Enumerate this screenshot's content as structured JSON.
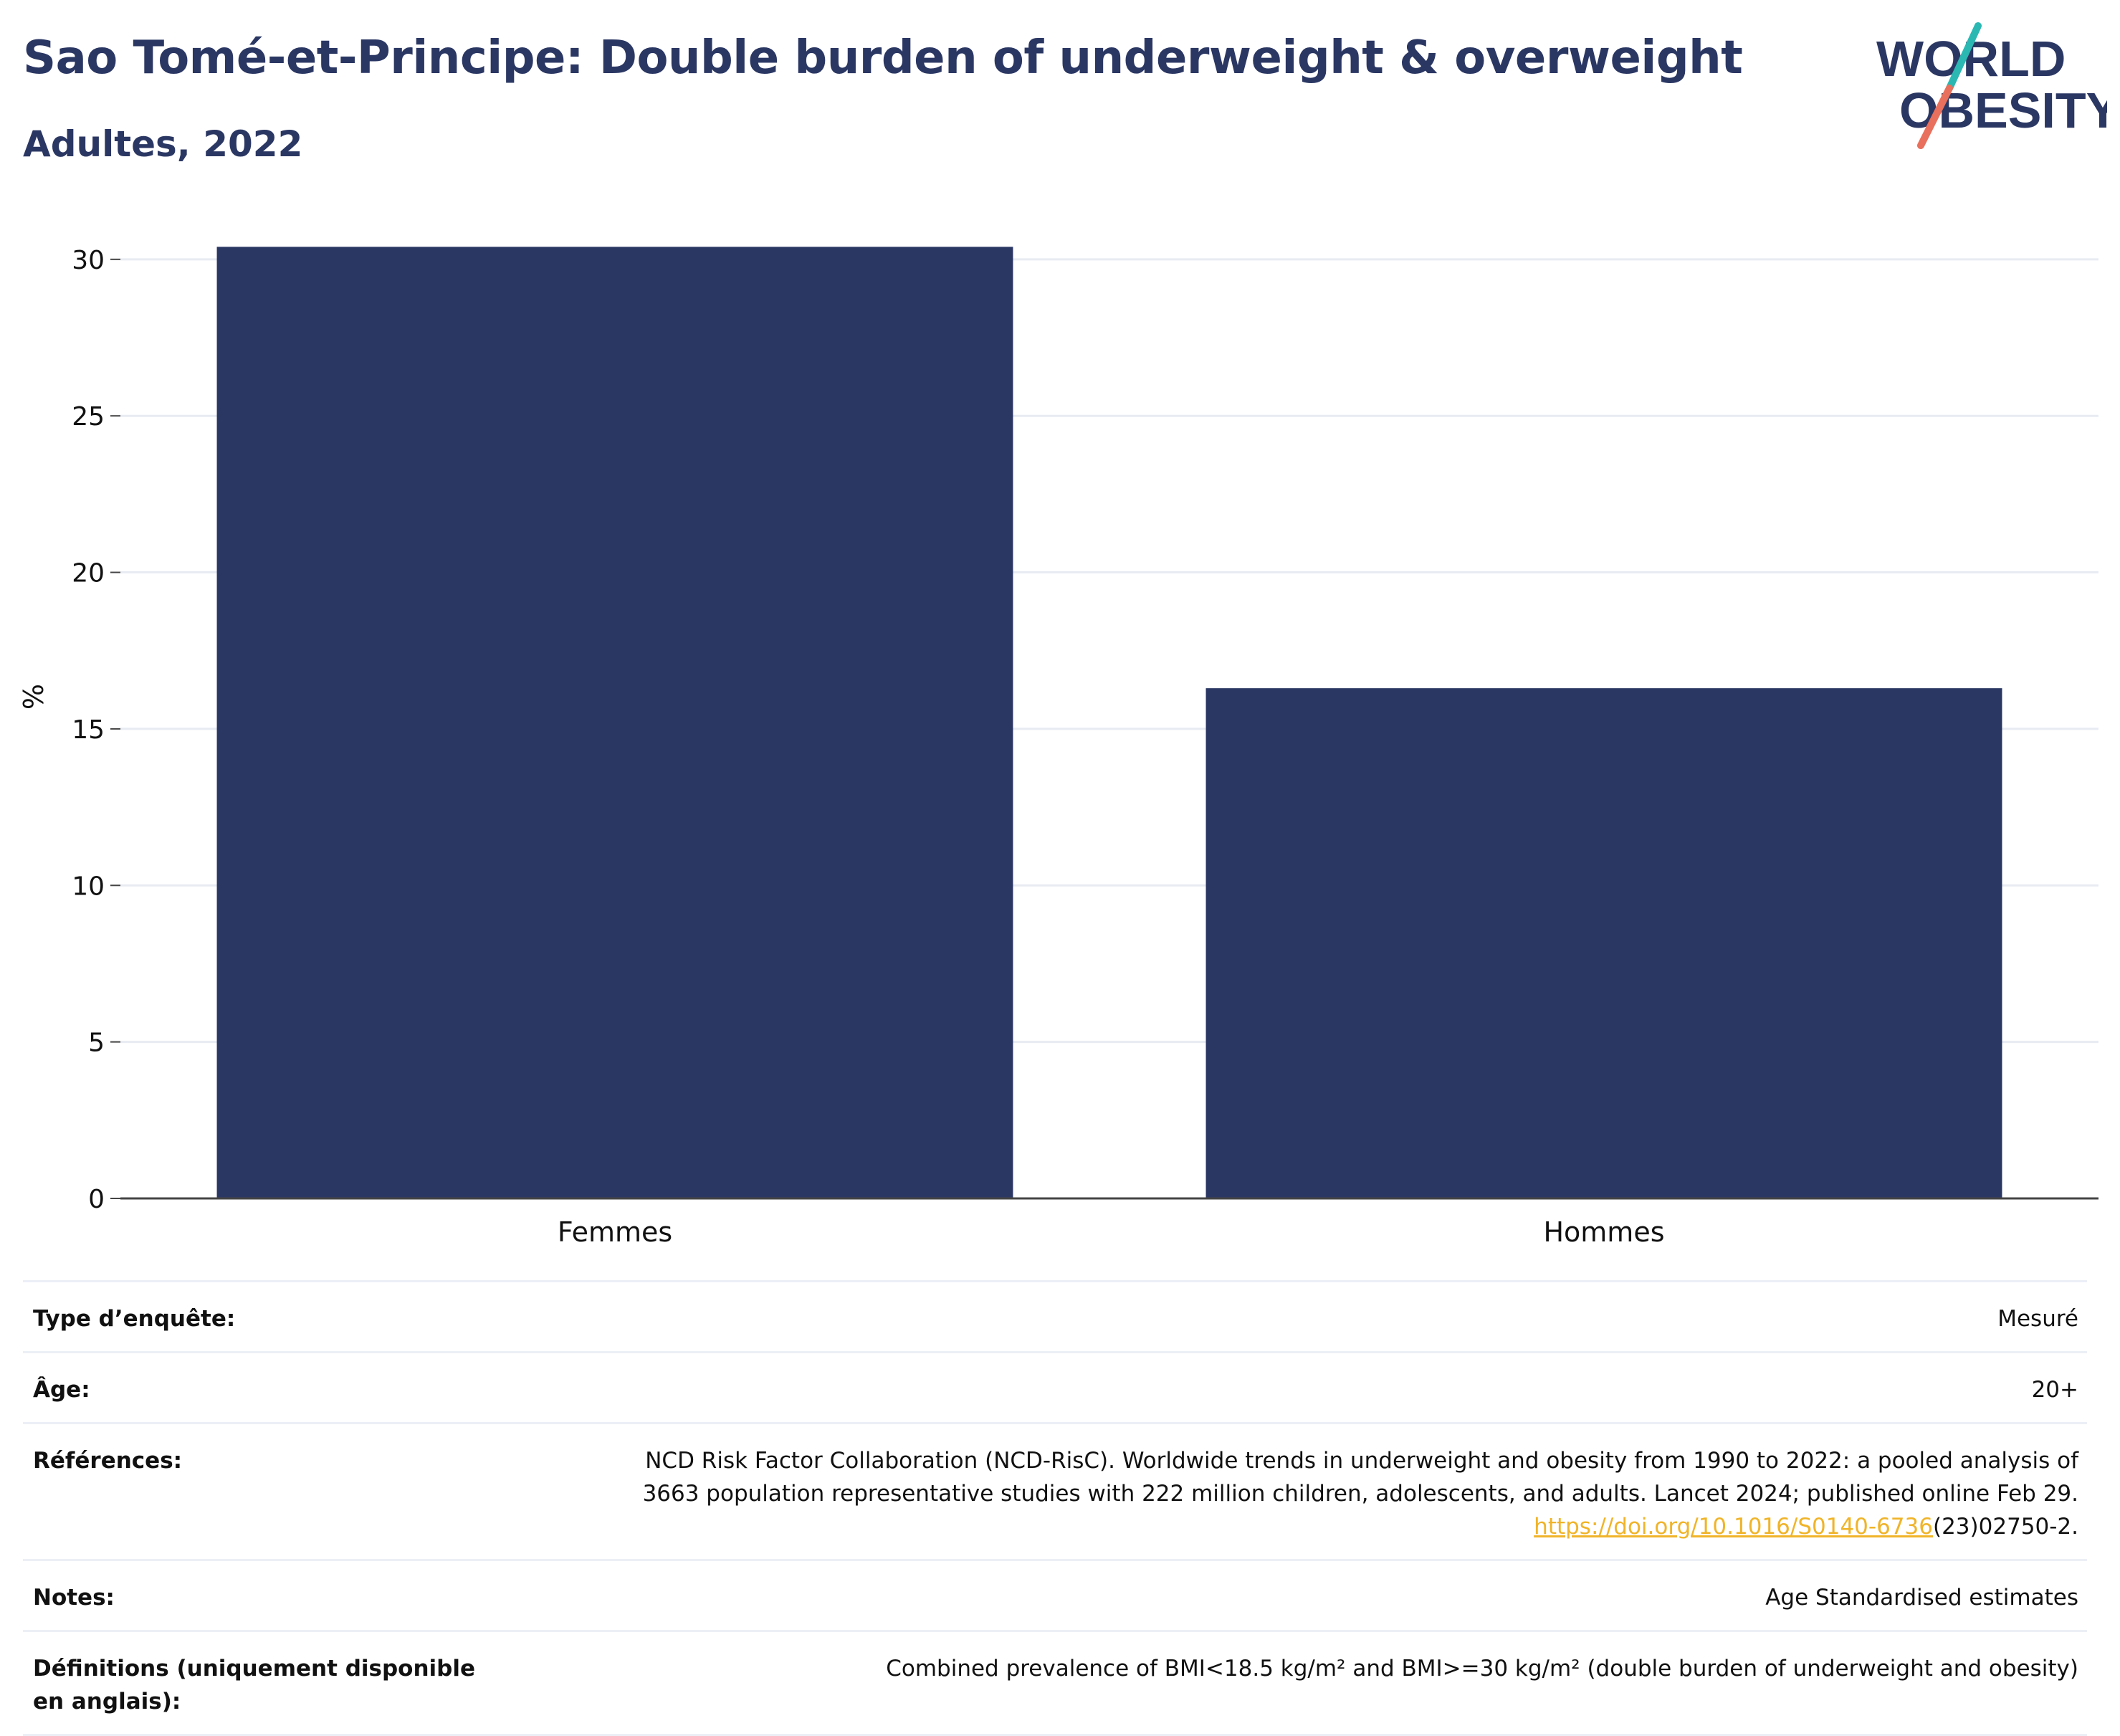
{
  "header": {
    "title": "Sao Tomé-et-Principe: Double burden of underweight & overweight",
    "subtitle": "Adultes, 2022"
  },
  "logo": {
    "line1": "WORLD",
    "line2": "OBESITY",
    "colors": {
      "text": "#2b3763",
      "slash_top": "#2bb8b3",
      "slash_bottom": "#e8705c"
    }
  },
  "chart_data": {
    "type": "bar",
    "categories": [
      "Femmes",
      "Hommes"
    ],
    "values": [
      30.4,
      16.3
    ],
    "ylabel": "%",
    "xlabel": "",
    "ylim": [
      0,
      30.5
    ],
    "yticks": [
      0,
      5,
      10,
      15,
      20,
      25,
      30
    ],
    "grid": true,
    "bar_color": "#2b3763"
  },
  "metadata": {
    "survey_type": {
      "label": "Type d’enquête:",
      "value": "Mesuré"
    },
    "age": {
      "label": "Âge:",
      "value": "20+"
    },
    "references": {
      "label": "Références:",
      "line1": "NCD Risk Factor Collaboration (NCD-RisC). Worldwide trends in underweight and obesity from 1990 to 2022: a pooled analysis of",
      "line2": "3663 population representative studies with 222 million children, adolescents, and adults. Lancet 2024; published online Feb 29.",
      "link": "https://doi.org/10.1016/S0140-6736",
      "link_suffix": "(23)02750-2."
    },
    "notes": {
      "label": "Notes:",
      "value": "Age Standardised estimates"
    },
    "definitions": {
      "label": "Définitions (uniquement disponible en anglais):",
      "value": "Combined prevalence of BMI<18.5 kg/m² and BMI>=30 kg/m² (double burden of underweight and obesity)"
    }
  }
}
